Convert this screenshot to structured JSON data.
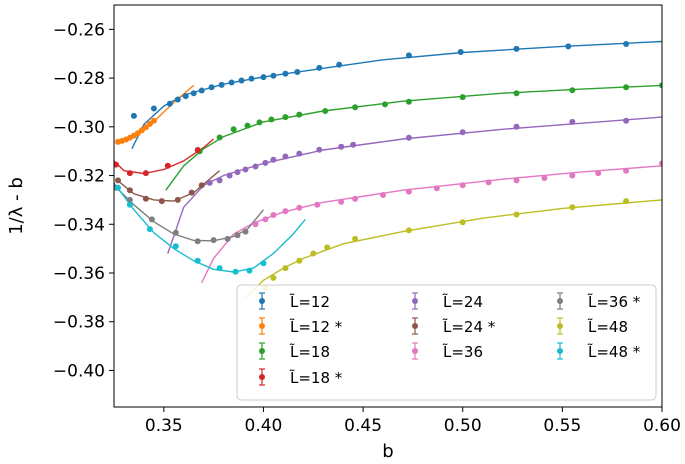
{
  "chart_data": {
    "type": "scatter",
    "xlabel": "b",
    "ylabel": "1/λ - b",
    "xlim": [
      0.325,
      0.6
    ],
    "ylim": [
      -0.415,
      -0.25
    ],
    "x_ticks": [
      "0.35",
      "0.40",
      "0.45",
      "0.50",
      "0.55",
      "0.60"
    ],
    "y_ticks": [
      "−0.26",
      "−0.28",
      "−0.30",
      "−0.32",
      "−0.34",
      "−0.36",
      "−0.38",
      "−0.40"
    ],
    "grid": false,
    "legend_position": "lower-right",
    "series": [
      {
        "name": "L̃=12",
        "color": "#1f77b4",
        "x": [
          0.335,
          0.345,
          0.353,
          0.357,
          0.361,
          0.365,
          0.369,
          0.374,
          0.379,
          0.384,
          0.389,
          0.394,
          0.4,
          0.405,
          0.411,
          0.417,
          0.428,
          0.438,
          0.473,
          0.499,
          0.527,
          0.553,
          0.582
        ],
        "y": [
          -0.2955,
          -0.2925,
          -0.2905,
          -0.2888,
          -0.2874,
          -0.2862,
          -0.2851,
          -0.2838,
          -0.2828,
          -0.2818,
          -0.281,
          -0.2802,
          -0.2796,
          -0.279,
          -0.2782,
          -0.2775,
          -0.2758,
          -0.2745,
          -0.2707,
          -0.2693,
          -0.268,
          -0.267,
          -0.266
        ],
        "fit": {
          "x": [
            0.334,
            0.34,
            0.35,
            0.36,
            0.38,
            0.4,
            0.43,
            0.46,
            0.5,
            0.55,
            0.6
          ],
          "y": [
            -0.309,
            -0.299,
            -0.2915,
            -0.287,
            -0.2825,
            -0.2795,
            -0.276,
            -0.2725,
            -0.2695,
            -0.267,
            -0.265
          ]
        }
      },
      {
        "name": "L̃=12 *",
        "color": "#ff7f0e",
        "x": [
          0.327,
          0.329,
          0.331,
          0.333,
          0.335,
          0.337,
          0.339,
          0.341,
          0.343,
          0.345
        ],
        "y": [
          -0.3062,
          -0.3058,
          -0.3052,
          -0.3045,
          -0.3036,
          -0.3026,
          -0.3014,
          -0.3002,
          -0.2988,
          -0.2975
        ],
        "fit": {
          "x": [
            0.326,
            0.335,
            0.345,
            0.355,
            0.365
          ],
          "y": [
            -0.307,
            -0.304,
            -0.2978,
            -0.29,
            -0.283
          ]
        }
      },
      {
        "name": "L̃=18",
        "color": "#2ca02c",
        "x": [
          0.368,
          0.378,
          0.385,
          0.392,
          0.398,
          0.404,
          0.411,
          0.418,
          0.431,
          0.446,
          0.461,
          0.473,
          0.5,
          0.527,
          0.555,
          0.582,
          0.6
        ],
        "y": [
          -0.31,
          -0.3044,
          -0.301,
          -0.2995,
          -0.2982,
          -0.297,
          -0.296,
          -0.295,
          -0.2935,
          -0.292,
          -0.2908,
          -0.2897,
          -0.2878,
          -0.2862,
          -0.285,
          -0.2838,
          -0.283
        ],
        "fit": {
          "x": [
            0.351,
            0.36,
            0.37,
            0.38,
            0.4,
            0.43,
            0.47,
            0.52,
            0.56,
            0.6
          ],
          "y": [
            -0.326,
            -0.316,
            -0.309,
            -0.304,
            -0.298,
            -0.2935,
            -0.2895,
            -0.2862,
            -0.2845,
            -0.283
          ]
        }
      },
      {
        "name": "L̃=18 *",
        "color": "#d62728",
        "x": [
          0.326,
          0.333,
          0.341,
          0.352,
          0.367
        ],
        "y": [
          -0.3155,
          -0.319,
          -0.319,
          -0.316,
          -0.3095
        ],
        "fit": {
          "x": [
            0.325,
            0.33,
            0.34,
            0.35,
            0.36,
            0.37,
            0.375
          ],
          "y": [
            -0.314,
            -0.318,
            -0.3192,
            -0.3175,
            -0.314,
            -0.3085,
            -0.305
          ]
        }
      },
      {
        "name": "L̃=24",
        "color": "#9467bd",
        "x": [
          0.373,
          0.378,
          0.383,
          0.387,
          0.391,
          0.396,
          0.401,
          0.405,
          0.411,
          0.418,
          0.428,
          0.439,
          0.445,
          0.473,
          0.5,
          0.527,
          0.555,
          0.582
        ],
        "y": [
          -0.323,
          -0.322,
          -0.32,
          -0.3186,
          -0.3175,
          -0.3163,
          -0.3148,
          -0.3135,
          -0.3122,
          -0.311,
          -0.3094,
          -0.3082,
          -0.3074,
          -0.3045,
          -0.3022,
          -0.3,
          -0.298,
          -0.2975
        ],
        "fit": {
          "x": [
            0.352,
            0.36,
            0.37,
            0.38,
            0.4,
            0.43,
            0.47,
            0.52,
            0.56,
            0.6
          ],
          "y": [
            -0.352,
            -0.333,
            -0.324,
            -0.32,
            -0.315,
            -0.3095,
            -0.305,
            -0.301,
            -0.2985,
            -0.296
          ]
        }
      },
      {
        "name": "L̃=24 *",
        "color": "#8c564b",
        "x": [
          0.327,
          0.333,
          0.341,
          0.349,
          0.357,
          0.364,
          0.369
        ],
        "y": [
          -0.322,
          -0.326,
          -0.3295,
          -0.3305,
          -0.33,
          -0.327,
          -0.324
        ],
        "fit": {
          "x": [
            0.326,
            0.335,
            0.345,
            0.355,
            0.365,
            0.37,
            0.378
          ],
          "y": [
            -0.3215,
            -0.3275,
            -0.33,
            -0.3305,
            -0.327,
            -0.3235,
            -0.318
          ]
        }
      },
      {
        "name": "L̃=36",
        "color": "#e377c2",
        "x": [
          0.396,
          0.401,
          0.405,
          0.411,
          0.418,
          0.427,
          0.439,
          0.446,
          0.46,
          0.473,
          0.487,
          0.5,
          0.513,
          0.527,
          0.541,
          0.555,
          0.568,
          0.582,
          0.6
        ],
        "y": [
          -0.34,
          -0.338,
          -0.3362,
          -0.3346,
          -0.3332,
          -0.332,
          -0.3308,
          -0.3296,
          -0.328,
          -0.3266,
          -0.3252,
          -0.324,
          -0.3228,
          -0.322,
          -0.321,
          -0.32,
          -0.319,
          -0.318,
          -0.315
        ],
        "fit": {
          "x": [
            0.369,
            0.375,
            0.385,
            0.395,
            0.41,
            0.43,
            0.47,
            0.52,
            0.56,
            0.6
          ],
          "y": [
            -0.364,
            -0.354,
            -0.344,
            -0.3395,
            -0.335,
            -0.331,
            -0.326,
            -0.3215,
            -0.3185,
            -0.316
          ]
        }
      },
      {
        "name": "L̃=36 *",
        "color": "#7f7f7f",
        "x": [
          0.326,
          0.333,
          0.344,
          0.356,
          0.367,
          0.375,
          0.382,
          0.387,
          0.391
        ],
        "y": [
          -0.325,
          -0.33,
          -0.338,
          -0.3435,
          -0.347,
          -0.3465,
          -0.346,
          -0.3445,
          -0.343
        ],
        "fit": {
          "x": [
            0.325,
            0.335,
            0.345,
            0.355,
            0.365,
            0.375,
            0.385,
            0.392,
            0.4
          ],
          "y": [
            -0.324,
            -0.332,
            -0.339,
            -0.344,
            -0.3466,
            -0.3468,
            -0.345,
            -0.342,
            -0.334
          ]
        }
      },
      {
        "name": "L̃=48",
        "color": "#bcbd22",
        "x": [
          0.401,
          0.405,
          0.411,
          0.418,
          0.425,
          0.432,
          0.446,
          0.473,
          0.5,
          0.527,
          0.555,
          0.582
        ],
        "y": [
          -0.366,
          -0.362,
          -0.358,
          -0.355,
          -0.352,
          -0.3495,
          -0.346,
          -0.3425,
          -0.3392,
          -0.336,
          -0.333,
          -0.3305
        ],
        "fit": {
          "x": [
            0.391,
            0.4,
            0.41,
            0.42,
            0.44,
            0.47,
            0.51,
            0.55,
            0.6
          ],
          "y": [
            -0.37,
            -0.363,
            -0.358,
            -0.354,
            -0.348,
            -0.343,
            -0.3375,
            -0.3335,
            -0.33
          ]
        }
      },
      {
        "name": "L̃=48 *",
        "color": "#17becf",
        "x": [
          0.327,
          0.333,
          0.343,
          0.356,
          0.367,
          0.378,
          0.386,
          0.393,
          0.4
        ],
        "y": [
          -0.325,
          -0.332,
          -0.342,
          -0.349,
          -0.355,
          -0.358,
          -0.3595,
          -0.359,
          -0.356
        ],
        "fit": {
          "x": [
            0.325,
            0.335,
            0.345,
            0.355,
            0.365,
            0.375,
            0.385,
            0.395,
            0.405,
            0.415,
            0.421
          ],
          "y": [
            -0.323,
            -0.334,
            -0.3435,
            -0.35,
            -0.355,
            -0.3585,
            -0.3596,
            -0.358,
            -0.352,
            -0.344,
            -0.338
          ]
        }
      }
    ]
  }
}
